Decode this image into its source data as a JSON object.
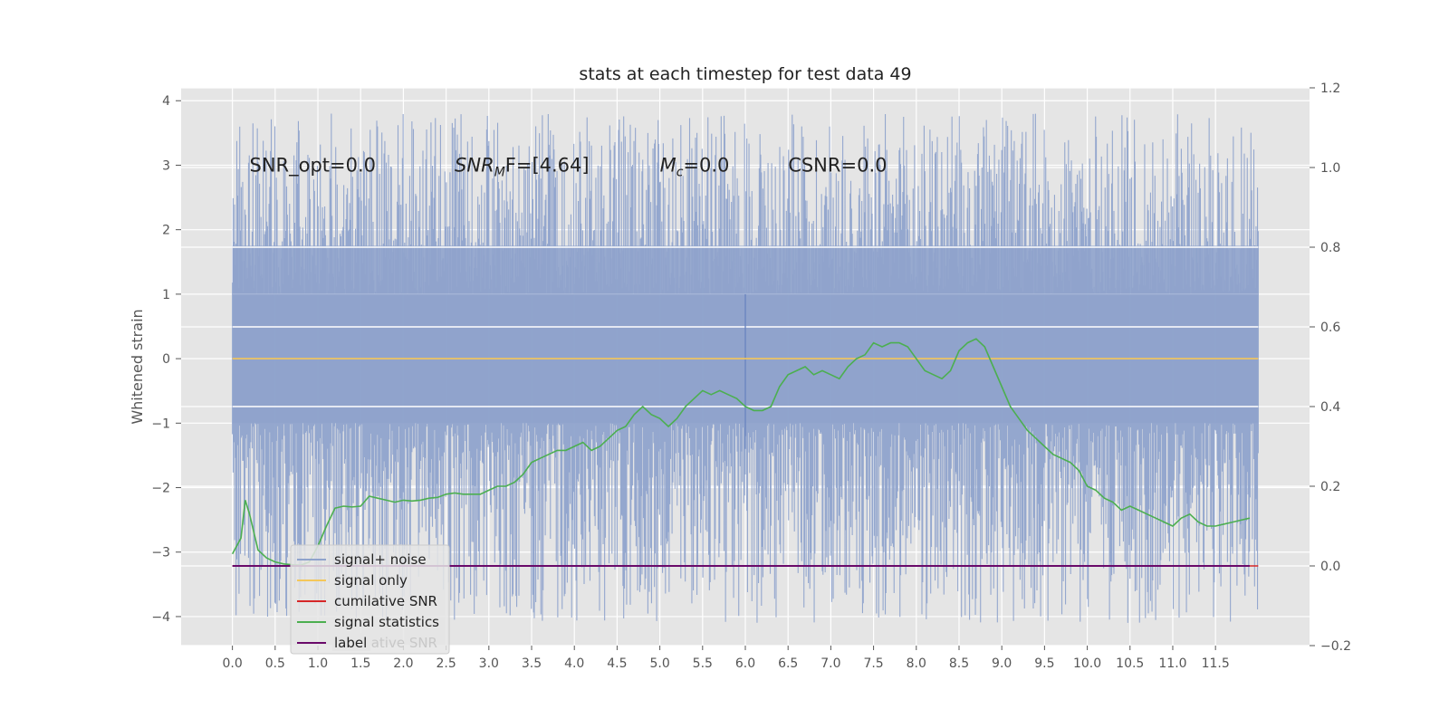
{
  "chart_data": {
    "type": "line",
    "title": "stats at each timestep for test data 49",
    "ylabel": "Whitened strain",
    "xlabel": "",
    "xlim": [
      -0.6,
      12.6
    ],
    "ylim": [
      -4.45,
      4.2
    ],
    "y2lim": [
      -0.2,
      1.2
    ],
    "x_ticks": [
      "0.0",
      "0.5",
      "1.0",
      "1.5",
      "2.0",
      "2.5",
      "3.0",
      "3.5",
      "4.0",
      "4.5",
      "5.0",
      "5.5",
      "6.0",
      "6.5",
      "7.0",
      "7.5",
      "8.0",
      "8.5",
      "9.0",
      "9.5",
      "10.0",
      "10.5",
      "11.0",
      "11.5"
    ],
    "y_ticks": [
      "4",
      "3",
      "2",
      "1",
      "0",
      "−1",
      "−2",
      "−3",
      "−4"
    ],
    "y2_ticks": [
      "1.2",
      "1.0",
      "0.8",
      "0.6",
      "0.4",
      "0.2",
      "0.0",
      "−0.2"
    ],
    "grid": true,
    "legend_position": "lower-left",
    "annotations": [
      {
        "text": "SNR_opt=0.0",
        "x": 0.2,
        "y": 3.0
      },
      {
        "prefix": "SNR",
        "sub": "M",
        "suffix": "F=[4.64]",
        "x": 2.6,
        "y": 3.0
      },
      {
        "prefix": "M",
        "sub": "c",
        "suffix": "=0.0",
        "x": 5.0,
        "y": 3.0
      },
      {
        "text": "CSNR=0.0",
        "x": 6.5,
        "y": 3.0
      }
    ],
    "series": [
      {
        "name": "signal+ noise",
        "color": "#8fa3cc",
        "axis": "left",
        "kind": "noise",
        "x_range": [
          0.0,
          12.0
        ],
        "envelope_upper": [
          1.0,
          3.8
        ],
        "envelope_lower": [
          -4.1,
          -1.0
        ],
        "spike_x": 6.0,
        "spike_y": 1.0
      },
      {
        "name": "signal only",
        "color": "#f4c75a",
        "axis": "left",
        "x": [
          0.0,
          12.0
        ],
        "y": [
          0.0,
          0.0
        ]
      },
      {
        "name": "cumilative SNR",
        "color": "#d62728",
        "axis": "right",
        "x": [
          0.0,
          12.0
        ],
        "y": [
          0.0,
          0.0
        ]
      },
      {
        "name": "signal statistics",
        "color": "#4caf50",
        "axis": "right",
        "x": [
          0.0,
          0.1,
          0.15,
          0.2,
          0.3,
          0.4,
          0.5,
          0.6,
          0.7,
          0.8,
          0.9,
          1.0,
          1.1,
          1.2,
          1.3,
          1.4,
          1.5,
          1.6,
          1.7,
          1.8,
          1.9,
          2.0,
          2.1,
          2.2,
          2.3,
          2.4,
          2.5,
          2.6,
          2.7,
          2.8,
          2.9,
          3.0,
          3.1,
          3.2,
          3.3,
          3.4,
          3.5,
          3.6,
          3.7,
          3.8,
          3.9,
          4.0,
          4.1,
          4.2,
          4.3,
          4.4,
          4.5,
          4.6,
          4.7,
          4.8,
          4.9,
          5.0,
          5.1,
          5.2,
          5.3,
          5.4,
          5.5,
          5.6,
          5.7,
          5.8,
          5.9,
          6.0,
          6.1,
          6.2,
          6.3,
          6.4,
          6.5,
          6.6,
          6.7,
          6.8,
          6.9,
          7.0,
          7.1,
          7.2,
          7.3,
          7.4,
          7.5,
          7.6,
          7.7,
          7.8,
          7.9,
          8.0,
          8.1,
          8.2,
          8.3,
          8.4,
          8.5,
          8.6,
          8.7,
          8.8,
          8.9,
          9.0,
          9.1,
          9.2,
          9.3,
          9.4,
          9.5,
          9.6,
          9.7,
          9.8,
          9.9,
          10.0,
          10.1,
          10.2,
          10.3,
          10.4,
          10.5,
          10.6,
          10.7,
          10.8,
          10.9,
          11.0,
          11.1,
          11.2,
          11.3,
          11.4,
          11.5,
          11.6,
          11.7,
          11.8,
          11.9
        ],
        "y": [
          0.03,
          0.07,
          0.165,
          0.13,
          0.04,
          0.02,
          0.01,
          0.005,
          0.003,
          0.002,
          0.01,
          0.05,
          0.1,
          0.145,
          0.15,
          0.148,
          0.15,
          0.175,
          0.17,
          0.165,
          0.16,
          0.165,
          0.163,
          0.165,
          0.17,
          0.172,
          0.18,
          0.183,
          0.18,
          0.18,
          0.18,
          0.19,
          0.2,
          0.2,
          0.21,
          0.23,
          0.26,
          0.27,
          0.28,
          0.29,
          0.29,
          0.3,
          0.31,
          0.29,
          0.3,
          0.32,
          0.34,
          0.35,
          0.38,
          0.4,
          0.38,
          0.37,
          0.35,
          0.37,
          0.4,
          0.42,
          0.44,
          0.43,
          0.44,
          0.43,
          0.42,
          0.4,
          0.39,
          0.39,
          0.4,
          0.45,
          0.48,
          0.49,
          0.5,
          0.48,
          0.49,
          0.48,
          0.47,
          0.5,
          0.52,
          0.53,
          0.56,
          0.55,
          0.56,
          0.56,
          0.55,
          0.52,
          0.49,
          0.48,
          0.47,
          0.49,
          0.54,
          0.56,
          0.57,
          0.55,
          0.5,
          0.45,
          0.4,
          0.37,
          0.34,
          0.32,
          0.3,
          0.28,
          0.27,
          0.26,
          0.24,
          0.2,
          0.19,
          0.17,
          0.16,
          0.14,
          0.15,
          0.14,
          0.13,
          0.12,
          0.11,
          0.1,
          0.12,
          0.13,
          0.11,
          0.1,
          0.1,
          0.105,
          0.11,
          0.115,
          0.12
        ]
      },
      {
        "name": "label",
        "color": "#6a0a6a",
        "axis": "right",
        "x": [
          0.0,
          11.9
        ],
        "y": [
          0.0,
          0.0
        ]
      }
    ],
    "legend_entries": [
      "signal+ noise",
      "signal only",
      "cumilative SNR",
      "signal statistics",
      "label"
    ],
    "legend_ghost": "cumilative SNR"
  }
}
